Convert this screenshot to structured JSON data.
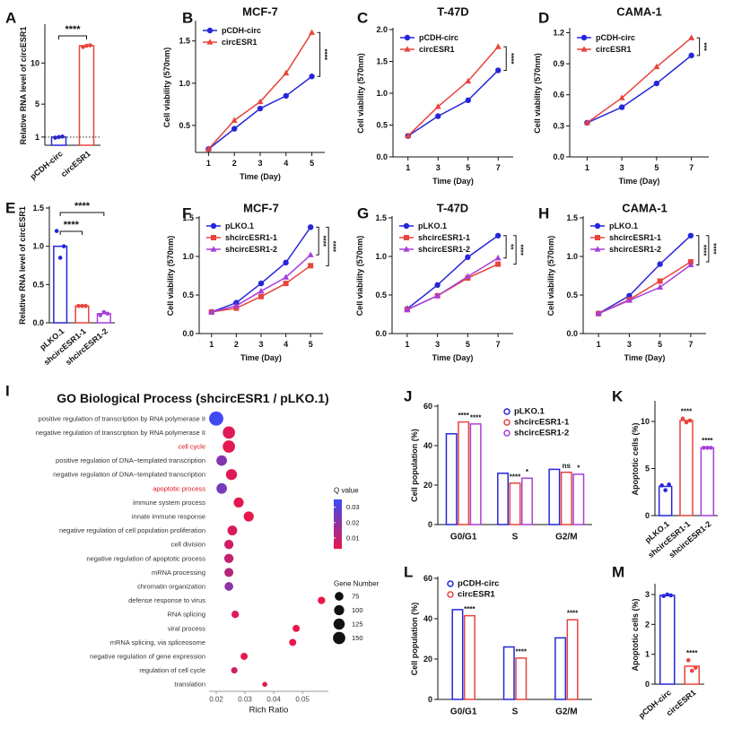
{
  "chart_data": [
    {
      "panel": "A",
      "type": "bar",
      "ylabel": "Relative RNA level of circESR1",
      "categories": [
        "pCDH-circ",
        "circESR1"
      ],
      "values": [
        1.0,
        12.1
      ],
      "points": [
        [
          0.92,
          1.0,
          1.06
        ],
        [
          11.95,
          12.1,
          12.15
        ]
      ],
      "colors": [
        "#2626d9",
        "#e8433c"
      ],
      "ylim": [
        0,
        14.5
      ],
      "yticks": [
        1,
        5,
        10
      ],
      "refline": 1,
      "significance": [
        "****"
      ]
    },
    {
      "panel": "B",
      "type": "line",
      "title": "MCF-7",
      "xlabel": "Time (Day)",
      "ylabel": "Cell viability (570nm)",
      "x": [
        1,
        2,
        3,
        4,
        5
      ],
      "xlim": [
        0.5,
        5.5
      ],
      "xticks": [
        1,
        2,
        3,
        4,
        5
      ],
      "ylim": [
        0.18,
        1.72
      ],
      "yticks": [
        0.5,
        {
          "value": 1,
          "label": "1.0"
        },
        1.5
      ],
      "legend": "upper left",
      "significance": [
        "****"
      ],
      "series": [
        {
          "name": "pCDH-circ",
          "color": "#2626d9",
          "marker": "circle",
          "values": [
            0.22,
            0.46,
            0.7,
            0.85,
            1.08
          ]
        },
        {
          "name": "circESR1",
          "color": "#e8433c",
          "marker": "triangle",
          "values": [
            0.22,
            0.56,
            0.78,
            1.12,
            1.6
          ]
        }
      ]
    },
    {
      "panel": "C",
      "type": "line",
      "title": "T-47D",
      "xlabel": "Time (Day)",
      "ylabel": "Cell viability (570nm)",
      "x": [
        1,
        3,
        5,
        7
      ],
      "xlim": [
        0,
        8
      ],
      "xticks": [
        1,
        3,
        5,
        7
      ],
      "ylim": [
        0,
        2.0
      ],
      "yticks": [
        {
          "value": 0,
          "label": "0.0"
        },
        0.5,
        {
          "value": 1,
          "label": "1.0"
        },
        1.5,
        {
          "value": 2,
          "label": "2.0"
        }
      ],
      "legend": "upper left",
      "significance": [
        "****"
      ],
      "series": [
        {
          "name": "pCDH-circ",
          "color": "#2626d9",
          "marker": "circle",
          "values": [
            0.33,
            0.64,
            0.89,
            1.36
          ]
        },
        {
          "name": "circESR1",
          "color": "#e8433c",
          "marker": "triangle",
          "values": [
            0.33,
            0.79,
            1.19,
            1.73
          ]
        }
      ]
    },
    {
      "panel": "D",
      "type": "line",
      "title": "CAMA-1",
      "xlabel": "Time (Day)",
      "ylabel": "Cell viability (570nm)",
      "x": [
        1,
        3,
        5,
        7
      ],
      "xlim": [
        0,
        8
      ],
      "xticks": [
        1,
        3,
        5,
        7
      ],
      "ylim": [
        0,
        1.23
      ],
      "yticks": [
        {
          "value": 0,
          "label": "0.0"
        },
        0.3,
        0.6,
        0.9,
        1.2
      ],
      "legend": "upper left",
      "significance": [
        "***"
      ],
      "series": [
        {
          "name": "pCDH-circ",
          "color": "#2626d9",
          "marker": "circle",
          "values": [
            0.33,
            0.48,
            0.71,
            0.98
          ]
        },
        {
          "name": "circESR1",
          "color": "#e8433c",
          "marker": "triangle",
          "values": [
            0.33,
            0.57,
            0.87,
            1.15
          ]
        }
      ]
    },
    {
      "panel": "E",
      "type": "bar",
      "ylabel": "Relative RNA level of circESR1",
      "categories": [
        "pLKO.1",
        "shcircESR1-1",
        "shcircESR1-2"
      ],
      "values": [
        1.0,
        0.22,
        0.12
      ],
      "points": [
        [
          1.2,
          0.85,
          1.0
        ],
        [
          0.22,
          0.22,
          0.22
        ],
        [
          0.1,
          0.14,
          0.12
        ]
      ],
      "colors": [
        "#2626d9",
        "#e8433c",
        "#a63fdc"
      ],
      "ylim": [
        0,
        1.5
      ],
      "yticks": [
        {
          "value": 0,
          "label": "0.0"
        },
        0.5,
        {
          "value": 1,
          "label": "1.0"
        },
        1.5
      ],
      "significance": [
        "****",
        "****"
      ]
    },
    {
      "panel": "F",
      "type": "line",
      "title": "MCF-7",
      "xlabel": "Time (Day)",
      "ylabel": "Cell viability (570nm)",
      "x": [
        1,
        2,
        3,
        4,
        5
      ],
      "xlim": [
        0.5,
        5.5
      ],
      "xticks": [
        1,
        2,
        3,
        4,
        5
      ],
      "ylim": [
        0,
        1.5
      ],
      "yticks": [
        {
          "value": 0,
          "label": "0.0"
        },
        0.5,
        {
          "value": 1,
          "label": "1.0"
        },
        1.5
      ],
      "legend": "upper left",
      "significance": [
        "****",
        "****"
      ],
      "series": [
        {
          "name": "pLKO.1",
          "color": "#2626d9",
          "marker": "circle",
          "values": [
            0.28,
            0.4,
            0.65,
            0.92,
            1.38
          ]
        },
        {
          "name": "shcircESR1-1",
          "color": "#e8433c",
          "marker": "square",
          "values": [
            0.28,
            0.33,
            0.48,
            0.65,
            0.88
          ]
        },
        {
          "name": "shcircESR1-2",
          "color": "#a63fdc",
          "marker": "triangle",
          "values": [
            0.28,
            0.36,
            0.55,
            0.73,
            1.02
          ]
        }
      ]
    },
    {
      "panel": "G",
      "type": "line",
      "title": "T-47D",
      "xlabel": "Time (Day)",
      "ylabel": "Cell viability (570nm)",
      "x": [
        1,
        3,
        5,
        7
      ],
      "xlim": [
        0,
        8
      ],
      "xticks": [
        1,
        3,
        5,
        7
      ],
      "ylim": [
        0,
        1.5
      ],
      "yticks": [
        {
          "value": 0,
          "label": "0.0"
        },
        0.5,
        {
          "value": 1,
          "label": "1.0"
        },
        1.5
      ],
      "legend": "upper left",
      "significance": [
        "**",
        "****"
      ],
      "series": [
        {
          "name": "pLKO.1",
          "color": "#2626d9",
          "marker": "circle",
          "values": [
            0.32,
            0.63,
            0.99,
            1.27
          ]
        },
        {
          "name": "shcircESR1-1",
          "color": "#e8433c",
          "marker": "square",
          "values": [
            0.31,
            0.49,
            0.72,
            0.9
          ]
        },
        {
          "name": "shcircESR1-2",
          "color": "#a63fdc",
          "marker": "triangle",
          "values": [
            0.31,
            0.49,
            0.74,
            0.98
          ]
        }
      ]
    },
    {
      "panel": "H",
      "type": "line",
      "title": "CAMA-1",
      "xlabel": "Time (Day)",
      "ylabel": "Cell viability (570nm)",
      "x": [
        1,
        3,
        5,
        7
      ],
      "xlim": [
        0,
        8
      ],
      "xticks": [
        1,
        3,
        5,
        7
      ],
      "ylim": [
        0,
        1.5
      ],
      "yticks": [
        {
          "value": 0,
          "label": "0.0"
        },
        0.5,
        {
          "value": 1,
          "label": "1.0"
        },
        1.5
      ],
      "legend": "upper left",
      "significance": [
        "****",
        "****"
      ],
      "series": [
        {
          "name": "pLKO.1",
          "color": "#2626d9",
          "marker": "circle",
          "values": [
            0.26,
            0.49,
            0.9,
            1.27
          ]
        },
        {
          "name": "shcircESR1-1",
          "color": "#e8433c",
          "marker": "square",
          "values": [
            0.26,
            0.44,
            0.68,
            0.93
          ]
        },
        {
          "name": "shcircESR1-2",
          "color": "#a63fdc",
          "marker": "triangle",
          "values": [
            0.26,
            0.43,
            0.6,
            0.89
          ]
        }
      ]
    },
    {
      "panel": "I",
      "type": "bubble",
      "title": "GO Biological Process (shcircESR1 / pLKO.1)",
      "xlabel": "Rich Ratio",
      "terms": [
        "positive regulation of transcription by RNA polymerase II",
        "negative regulation of transcription by RNA polymerase II",
        "cell cycle",
        "positive regulation of DNA−templated transcription",
        "negative regulation of DNA−templated transcription",
        "apoptotic process",
        "immune system process",
        "innate immune response",
        "negative regulation of cell population proliferation",
        "cell division",
        "negative regulation of apoptotic process",
        "mRNA processing",
        "chromatin organization",
        "defense response to virus",
        "RNA splicing",
        "viral process",
        "mRNA splicing, via spliceosome",
        "negative regulation of gene expression",
        "regulation of cell cycle",
        "translation"
      ],
      "term_colors": [
        "#333333",
        "#333333",
        "#e0141e",
        "#333333",
        "#333333",
        "#e0141e",
        "#333333",
        "#333333",
        "#333333",
        "#333333",
        "#333333",
        "#333333",
        "#333333",
        "#333333",
        "#333333",
        "#333333",
        "#333333",
        "#333333",
        "#333333",
        "#333333"
      ],
      "x": [
        0.02,
        0.0244,
        0.0244,
        0.0219,
        0.0253,
        0.0219,
        0.0278,
        0.0313,
        0.0256,
        0.0244,
        0.0244,
        0.0244,
        0.0244,
        0.0566,
        0.0266,
        0.0478,
        0.0466,
        0.0297,
        0.0263,
        0.0369
      ],
      "sizes": [
        200,
        150,
        150,
        110,
        120,
        110,
        100,
        100,
        95,
        85,
        85,
        80,
        75,
        55,
        55,
        50,
        50,
        50,
        40,
        25
      ],
      "q": [
        0.034,
        0.005,
        0.004,
        0.022,
        0.005,
        0.024,
        0.004,
        0.003,
        0.006,
        0.008,
        0.01,
        0.012,
        0.02,
        0.003,
        0.005,
        0.003,
        0.003,
        0.004,
        0.008,
        0.003
      ],
      "xlim": [
        0.0175,
        0.059
      ],
      "xticks": [
        0.02,
        0.03,
        0.04,
        0.05
      ],
      "color_title": "Q value",
      "qlim": [
        0.003,
        0.035
      ],
      "qticks": [
        0.03,
        0.02,
        0.01
      ],
      "color_low": "#e8174a",
      "color_high": "#3a4cf6",
      "size_title": "Gene Number",
      "size_ticks": [
        75,
        100,
        125,
        150
      ]
    },
    {
      "panel": "J",
      "type": "bar",
      "ylabel": "Cell population (%)",
      "categories": [
        "G0/G1",
        "S",
        "G2/M"
      ],
      "ylim": [
        0,
        60
      ],
      "yticks": [
        0,
        20,
        40,
        60
      ],
      "legend": "upper right",
      "series": [
        {
          "name": "pLKO.1",
          "color": "#2626d9",
          "values": [
            46,
            26,
            28
          ]
        },
        {
          "name": "shcircESR1-1",
          "color": "#e8433c",
          "values": [
            52,
            21,
            26.5
          ],
          "annotations": [
            "****",
            "****",
            "ns"
          ]
        },
        {
          "name": "shcircESR1-2",
          "color": "#a63fdc",
          "values": [
            51,
            23.5,
            25.5
          ],
          "annotations": [
            "****",
            "*",
            "*"
          ]
        }
      ]
    },
    {
      "panel": "K",
      "type": "bar",
      "ylabel": "Apoptotic cells (%)",
      "categories": [
        "pLKO.1",
        "shcircESR1-1",
        "shcircESR1-2"
      ],
      "values": [
        3.1,
        10.1,
        7.2
      ],
      "points": [
        [
          3.2,
          2.7,
          3.3
        ],
        [
          10.3,
          9.9,
          10.1
        ],
        [
          7.2,
          7.2,
          7.2
        ]
      ],
      "colors": [
        "#2626d9",
        "#e8433c",
        "#a63fdc"
      ],
      "ylim": [
        0,
        12
      ],
      "yticks": [
        0,
        5,
        10
      ],
      "annotations": [
        null,
        "****",
        "****"
      ]
    },
    {
      "panel": "L",
      "type": "bar",
      "ylabel": "Cell population (%)",
      "categories": [
        "G0/G1",
        "S",
        "G2/M"
      ],
      "ylim": [
        0,
        60
      ],
      "yticks": [
        0,
        20,
        40,
        60
      ],
      "legend": "upper left",
      "series": [
        {
          "name": "pCDH-circ",
          "color": "#2626d9",
          "values": [
            44.5,
            26,
            30.5
          ]
        },
        {
          "name": "circESR1",
          "color": "#e8433c",
          "values": [
            41.5,
            20.5,
            39.5
          ],
          "annotations": [
            "****",
            "****",
            "****"
          ]
        }
      ]
    },
    {
      "panel": "M",
      "type": "bar",
      "ylabel": "Apoptotic cells (%)",
      "categories": [
        "pCDH-circ",
        "circESR1"
      ],
      "values": [
        2.97,
        0.6
      ],
      "points": [
        [
          2.95,
          3.0,
          2.97
        ],
        [
          0.8,
          0.45,
          0.55
        ]
      ],
      "colors": [
        "#2626d9",
        "#e8433c"
      ],
      "ylim": [
        0,
        3.3
      ],
      "yticks": [
        0,
        1,
        2,
        3
      ],
      "annotations": [
        null,
        "****"
      ]
    }
  ]
}
